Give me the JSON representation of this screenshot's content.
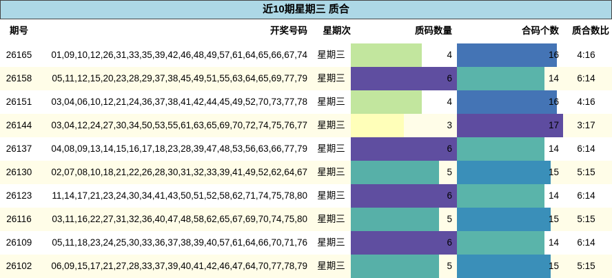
{
  "title": "近10期星期三 质合",
  "table": {
    "columns": [
      "期号",
      "开奖号码",
      "星期次",
      "质码数量",
      "合码个数",
      "质合数比"
    ],
    "rows": [
      [
        "26165",
        "01,09,10,12,26,31,33,35,39,42,46,48,49,57,61,64,65,66,67,74",
        "星期三",
        4,
        16,
        "4:16"
      ],
      [
        "26158",
        "05,11,12,15,20,23,28,29,37,38,45,49,51,55,63,64,65,69,77,79",
        "星期三",
        6,
        14,
        "6:14"
      ],
      [
        "26151",
        "03,04,06,10,12,21,24,36,37,38,41,42,44,45,49,52,70,73,77,78",
        "星期三",
        4,
        16,
        "4:16"
      ],
      [
        "26144",
        "03,04,12,24,27,30,34,50,53,55,61,63,65,69,70,72,74,75,76,77",
        "星期三",
        3,
        17,
        "3:17"
      ],
      [
        "26137",
        "04,08,09,13,14,15,16,17,18,23,28,39,47,48,53,56,63,66,77,79",
        "星期三",
        6,
        14,
        "6:14"
      ],
      [
        "26130",
        "02,07,08,10,18,21,22,26,28,30,31,32,33,39,41,49,52,62,64,67",
        "星期三",
        5,
        15,
        "5:15"
      ],
      [
        "26123",
        "11,14,17,21,23,24,30,34,41,43,50,51,52,58,62,71,74,75,78,80",
        "星期三",
        6,
        14,
        "6:14"
      ],
      [
        "26116",
        "03,11,16,22,27,31,32,36,40,47,48,58,62,65,67,69,70,74,75,80",
        "星期三",
        5,
        15,
        "5:15"
      ],
      [
        "26109",
        "05,11,18,23,24,25,30,33,36,37,38,39,40,57,61,64,66,70,71,76",
        "星期三",
        6,
        14,
        "6:14"
      ],
      [
        "26102",
        "06,09,15,17,21,27,28,33,37,39,40,41,42,46,47,64,70,77,78,79",
        "星期三",
        5,
        15,
        "5:15"
      ]
    ]
  },
  "bar_colors": {
    "prime": [
      "#c2e69e",
      "#5f4ea0",
      "#c2e69e",
      "#ffffb9",
      "#5f4ea0",
      "#57b0a8",
      "#5f4ea0",
      "#57b0a8",
      "#5f4ea0",
      "#57b0a8"
    ],
    "composite": [
      "#4474b5",
      "#5ab4aa",
      "#4474b5",
      "#5e4ca0",
      "#5ab4aa",
      "#3a8fb9",
      "#5ab4aa",
      "#3a8fb9",
      "#5ab4aa",
      "#3a8fb9"
    ]
  }
}
